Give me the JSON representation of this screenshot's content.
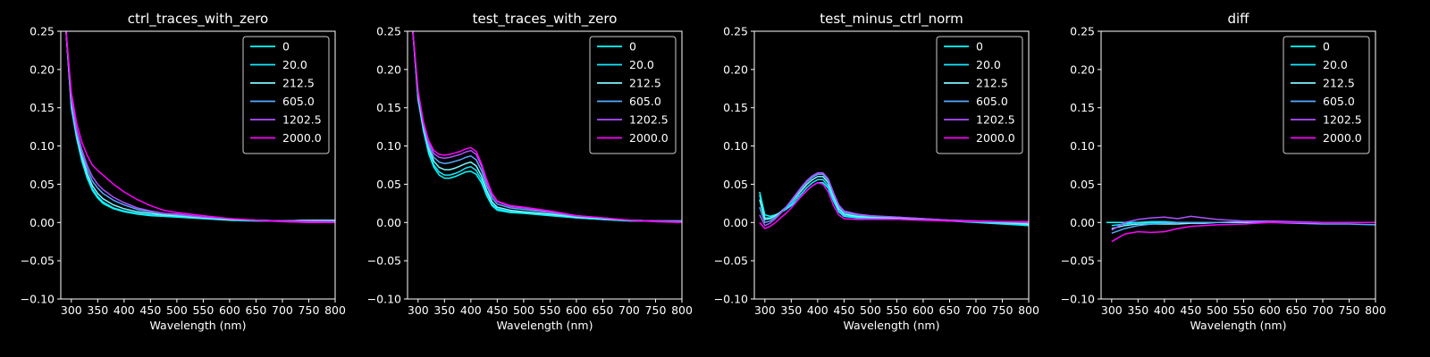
{
  "figure": {
    "background": "#000000",
    "foreground": "#ffffff",
    "series_colors": [
      "#00ffff",
      "#15eaff",
      "#7ff6ff",
      "#54abff",
      "#ae51ff",
      "#ff00ff"
    ]
  },
  "chart_data": [
    {
      "type": "line",
      "title": "ctrl_traces_with_zero",
      "xlabel": "Wavelength (nm)",
      "ylabel": "",
      "xlim": [
        280,
        800
      ],
      "ylim": [
        -0.1,
        0.25
      ],
      "xticks": [
        300,
        350,
        400,
        450,
        500,
        550,
        600,
        650,
        700,
        750,
        800
      ],
      "yticks": [
        -0.1,
        -0.05,
        0.0,
        0.05,
        0.1,
        0.15,
        0.2,
        0.25
      ],
      "ytick_labels": [
        "−0.10",
        "−0.05",
        "0.00",
        "0.05",
        "0.10",
        "0.15",
        "0.20",
        "0.25"
      ],
      "legend": "upper right",
      "grid": false,
      "x": [
        290,
        300,
        310,
        320,
        330,
        340,
        350,
        360,
        380,
        400,
        425,
        450,
        475,
        500,
        550,
        600,
        650,
        700,
        750,
        800
      ],
      "series": [
        {
          "name": "0",
          "values": [
            0.25,
            0.15,
            0.11,
            0.08,
            0.058,
            0.042,
            0.032,
            0.025,
            0.018,
            0.014,
            0.011,
            0.009,
            0.008,
            0.007,
            0.005,
            0.003,
            0.002,
            0.002,
            0.003,
            0.003
          ]
        },
        {
          "name": "20.0",
          "values": [
            0.25,
            0.152,
            0.112,
            0.082,
            0.06,
            0.044,
            0.034,
            0.027,
            0.019,
            0.015,
            0.012,
            0.01,
            0.009,
            0.008,
            0.006,
            0.004,
            0.003,
            0.002,
            0.003,
            0.003
          ]
        },
        {
          "name": "212.5",
          "values": [
            0.25,
            0.155,
            0.115,
            0.086,
            0.064,
            0.048,
            0.038,
            0.031,
            0.023,
            0.018,
            0.014,
            0.012,
            0.01,
            0.009,
            0.006,
            0.004,
            0.003,
            0.002,
            0.003,
            0.003
          ]
        },
        {
          "name": "605.0",
          "values": [
            0.25,
            0.158,
            0.118,
            0.09,
            0.07,
            0.054,
            0.045,
            0.038,
            0.029,
            0.023,
            0.017,
            0.014,
            0.012,
            0.01,
            0.007,
            0.005,
            0.003,
            0.002,
            0.002,
            0.002
          ]
        },
        {
          "name": "1202.5",
          "values": [
            0.25,
            0.162,
            0.122,
            0.095,
            0.075,
            0.06,
            0.05,
            0.043,
            0.033,
            0.026,
            0.019,
            0.015,
            0.012,
            0.011,
            0.007,
            0.005,
            0.003,
            0.002,
            0.002,
            0.001
          ]
        },
        {
          "name": "2000.0",
          "values": [
            0.25,
            0.17,
            0.13,
            0.105,
            0.088,
            0.075,
            0.068,
            0.062,
            0.05,
            0.04,
            0.03,
            0.022,
            0.016,
            0.013,
            0.009,
            0.005,
            0.003,
            0.001,
            0.0,
            0.0
          ]
        }
      ]
    },
    {
      "type": "line",
      "title": "test_traces_with_zero",
      "xlabel": "Wavelength (nm)",
      "ylabel": "",
      "xlim": [
        280,
        800
      ],
      "ylim": [
        -0.1,
        0.25
      ],
      "xticks": [
        300,
        350,
        400,
        450,
        500,
        550,
        600,
        650,
        700,
        750,
        800
      ],
      "yticks": [
        -0.1,
        -0.05,
        0.0,
        0.05,
        0.1,
        0.15,
        0.2,
        0.25
      ],
      "ytick_labels": [
        "−0.10",
        "−0.05",
        "0.00",
        "0.05",
        "0.10",
        "0.15",
        "0.20",
        "0.25"
      ],
      "legend": "upper right",
      "grid": false,
      "x": [
        290,
        300,
        310,
        320,
        330,
        340,
        350,
        360,
        370,
        380,
        390,
        400,
        410,
        420,
        430,
        440,
        450,
        475,
        500,
        550,
        600,
        650,
        700,
        750,
        800
      ],
      "series": [
        {
          "name": "0",
          "values": [
            0.25,
            0.16,
            0.12,
            0.09,
            0.072,
            0.062,
            0.058,
            0.058,
            0.06,
            0.063,
            0.066,
            0.067,
            0.063,
            0.052,
            0.035,
            0.022,
            0.016,
            0.013,
            0.012,
            0.009,
            0.006,
            0.004,
            0.002,
            0.002,
            0.002
          ]
        },
        {
          "name": "20.0",
          "values": [
            0.25,
            0.162,
            0.122,
            0.093,
            0.075,
            0.066,
            0.062,
            0.062,
            0.064,
            0.067,
            0.071,
            0.073,
            0.068,
            0.056,
            0.038,
            0.024,
            0.018,
            0.014,
            0.013,
            0.01,
            0.006,
            0.004,
            0.003,
            0.002,
            0.002
          ]
        },
        {
          "name": "212.5",
          "values": [
            0.25,
            0.165,
            0.125,
            0.097,
            0.08,
            0.072,
            0.069,
            0.069,
            0.071,
            0.074,
            0.077,
            0.079,
            0.074,
            0.061,
            0.042,
            0.027,
            0.02,
            0.016,
            0.014,
            0.011,
            0.007,
            0.005,
            0.003,
            0.002,
            0.002
          ]
        },
        {
          "name": "605.0",
          "values": [
            0.25,
            0.168,
            0.128,
            0.1,
            0.085,
            0.079,
            0.077,
            0.078,
            0.08,
            0.082,
            0.085,
            0.087,
            0.082,
            0.068,
            0.048,
            0.032,
            0.024,
            0.019,
            0.017,
            0.013,
            0.008,
            0.006,
            0.003,
            0.002,
            0.002
          ]
        },
        {
          "name": "1202.5",
          "values": [
            0.25,
            0.17,
            0.13,
            0.104,
            0.09,
            0.085,
            0.084,
            0.085,
            0.087,
            0.089,
            0.092,
            0.094,
            0.089,
            0.074,
            0.053,
            0.036,
            0.027,
            0.021,
            0.019,
            0.014,
            0.009,
            0.006,
            0.003,
            0.002,
            0.001
          ]
        },
        {
          "name": "2000.0",
          "values": [
            0.25,
            0.172,
            0.132,
            0.107,
            0.094,
            0.089,
            0.088,
            0.089,
            0.091,
            0.093,
            0.096,
            0.098,
            0.093,
            0.077,
            0.056,
            0.038,
            0.028,
            0.022,
            0.02,
            0.015,
            0.009,
            0.006,
            0.003,
            0.001,
            0.0
          ]
        }
      ]
    },
    {
      "type": "line",
      "title": "test_minus_ctrl_norm",
      "xlabel": "Wavelength (nm)",
      "ylabel": "",
      "xlim": [
        280,
        800
      ],
      "ylim": [
        -0.1,
        0.25
      ],
      "xticks": [
        300,
        350,
        400,
        450,
        500,
        550,
        600,
        650,
        700,
        750,
        800
      ],
      "yticks": [
        -0.1,
        -0.05,
        0.0,
        0.05,
        0.1,
        0.15,
        0.2,
        0.25
      ],
      "ytick_labels": [
        "−0.10",
        "−0.05",
        "0.00",
        "0.05",
        "0.10",
        "0.15",
        "0.20",
        "0.25"
      ],
      "legend": "upper right",
      "grid": false,
      "x": [
        290,
        300,
        310,
        320,
        330,
        340,
        350,
        360,
        370,
        380,
        390,
        400,
        410,
        420,
        430,
        440,
        450,
        475,
        500,
        550,
        600,
        650,
        700,
        750,
        800
      ],
      "series": [
        {
          "name": "0",
          "values": [
            0.04,
            0.01,
            0.008,
            0.01,
            0.013,
            0.017,
            0.022,
            0.028,
            0.035,
            0.042,
            0.048,
            0.052,
            0.052,
            0.045,
            0.028,
            0.014,
            0.008,
            0.006,
            0.006,
            0.006,
            0.004,
            0.002,
            0.0,
            -0.002,
            -0.004
          ]
        },
        {
          "name": "20.0",
          "values": [
            0.036,
            0.006,
            0.006,
            0.009,
            0.013,
            0.018,
            0.024,
            0.031,
            0.038,
            0.046,
            0.052,
            0.056,
            0.056,
            0.048,
            0.03,
            0.015,
            0.009,
            0.007,
            0.006,
            0.006,
            0.004,
            0.002,
            0.001,
            -0.001,
            -0.003
          ]
        },
        {
          "name": "212.5",
          "values": [
            0.03,
            0.004,
            0.005,
            0.009,
            0.014,
            0.02,
            0.027,
            0.034,
            0.042,
            0.05,
            0.056,
            0.06,
            0.06,
            0.052,
            0.034,
            0.018,
            0.011,
            0.008,
            0.007,
            0.006,
            0.004,
            0.003,
            0.001,
            0.0,
            -0.002
          ]
        },
        {
          "name": "605.0",
          "values": [
            0.02,
            0.0,
            0.002,
            0.007,
            0.013,
            0.02,
            0.028,
            0.036,
            0.045,
            0.053,
            0.059,
            0.063,
            0.063,
            0.055,
            0.037,
            0.021,
            0.013,
            0.01,
            0.008,
            0.007,
            0.005,
            0.003,
            0.002,
            0.001,
            0.0
          ]
        },
        {
          "name": "1202.5",
          "values": [
            0.01,
            -0.004,
            -0.001,
            0.005,
            0.012,
            0.02,
            0.029,
            0.038,
            0.047,
            0.055,
            0.061,
            0.065,
            0.065,
            0.057,
            0.039,
            0.023,
            0.015,
            0.011,
            0.009,
            0.007,
            0.005,
            0.003,
            0.002,
            0.001,
            0.0
          ]
        },
        {
          "name": "2000.0",
          "values": [
            0.0,
            -0.008,
            -0.005,
            0.0,
            0.006,
            0.012,
            0.019,
            0.027,
            0.035,
            0.042,
            0.048,
            0.052,
            0.05,
            0.04,
            0.022,
            0.01,
            0.005,
            0.004,
            0.004,
            0.004,
            0.003,
            0.002,
            0.001,
            0.001,
            0.001
          ]
        }
      ]
    },
    {
      "type": "line",
      "title": "diff",
      "xlabel": "Wavelength (nm)",
      "ylabel": "",
      "xlim": [
        280,
        800
      ],
      "ylim": [
        -0.1,
        0.25
      ],
      "xticks": [
        300,
        350,
        400,
        450,
        500,
        550,
        600,
        650,
        700,
        750,
        800
      ],
      "yticks": [
        -0.1,
        -0.05,
        0.0,
        0.05,
        0.1,
        0.15,
        0.2,
        0.25
      ],
      "ytick_labels": [
        "−0.10",
        "−0.05",
        "0.00",
        "0.05",
        "0.10",
        "0.15",
        "0.20",
        "0.25"
      ],
      "legend": "upper right",
      "grid": false,
      "x": [
        290,
        300,
        325,
        350,
        375,
        400,
        425,
        450,
        475,
        500,
        550,
        600,
        650,
        700,
        750,
        800
      ],
      "series": [
        {
          "name": "0",
          "values": [
            0.0,
            0.0,
            0.0,
            0.0,
            0.0,
            0.0,
            0.0,
            0.0,
            0.0,
            0.0,
            0.0,
            0.0,
            0.0,
            0.0,
            0.0,
            0.0
          ]
        },
        {
          "name": "20.0",
          "values": [
            null,
            -0.004,
            -0.002,
            0.0,
            0.001,
            0.001,
            0.0,
            0.0,
            0.0,
            0.0,
            0.0,
            0.0,
            0.0,
            0.0,
            0.0,
            0.0
          ]
        },
        {
          "name": "212.5",
          "values": [
            null,
            -0.008,
            -0.004,
            -0.002,
            -0.002,
            -0.002,
            -0.002,
            -0.001,
            -0.001,
            0.0,
            0.0,
            0.0,
            0.0,
            0.0,
            0.0,
            0.0
          ]
        },
        {
          "name": "605.0",
          "values": [
            null,
            -0.014,
            -0.008,
            -0.004,
            -0.002,
            -0.001,
            0.0,
            0.0,
            0.0,
            0.0,
            0.001,
            0.0,
            -0.001,
            -0.002,
            -0.002,
            -0.003
          ]
        },
        {
          "name": "1202.5",
          "values": [
            null,
            -0.01,
            0.0,
            0.004,
            0.006,
            0.007,
            0.005,
            0.008,
            0.006,
            0.004,
            0.002,
            0.002,
            0.001,
            0.0,
            0.0,
            0.0
          ]
        },
        {
          "name": "2000.0",
          "values": [
            null,
            -0.025,
            -0.015,
            -0.012,
            -0.013,
            -0.012,
            -0.008,
            -0.005,
            -0.004,
            -0.003,
            -0.002,
            0.0,
            0.0,
            0.0,
            0.0,
            0.0
          ]
        }
      ]
    }
  ]
}
